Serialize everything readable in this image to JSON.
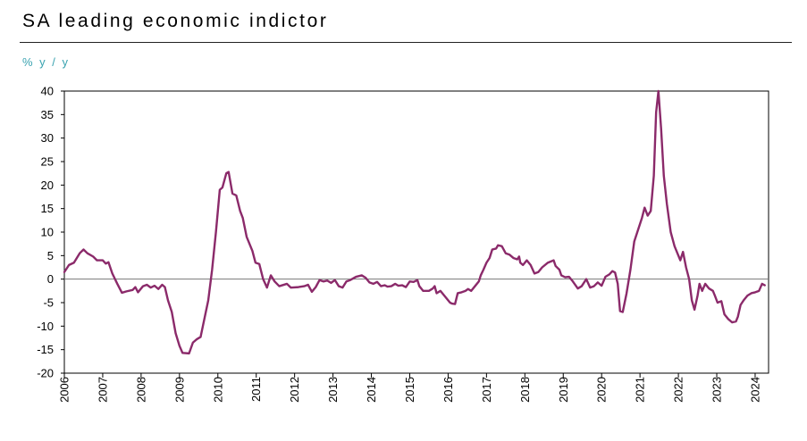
{
  "header": {
    "title": "SA leading economic indictor"
  },
  "chart_data": {
    "type": "line",
    "title": "SA leading economic indictor",
    "ylabel": "% y / y",
    "xlabel": "",
    "ylim": [
      -20,
      40
    ],
    "xlim": [
      2006,
      2024.35
    ],
    "y_ticks": [
      40,
      35,
      30,
      25,
      20,
      15,
      10,
      5,
      0,
      -5,
      -10,
      -15,
      -20
    ],
    "x_ticks": [
      "2006",
      "2007",
      "2008",
      "2009",
      "2010",
      "2011",
      "2012",
      "2013",
      "2014",
      "2015",
      "2016",
      "2017",
      "2018",
      "2019",
      "2020",
      "2021",
      "2022",
      "2023",
      "2024"
    ],
    "grid": false,
    "zero_line": true,
    "series": [
      {
        "color": "#8b2a6a",
        "points": [
          [
            2006.0,
            1.5
          ],
          [
            2006.12,
            3.0
          ],
          [
            2006.25,
            3.5
          ],
          [
            2006.4,
            5.5
          ],
          [
            2006.5,
            6.3
          ],
          [
            2006.6,
            5.5
          ],
          [
            2006.75,
            4.8
          ],
          [
            2006.85,
            4.0
          ],
          [
            2007.0,
            4.0
          ],
          [
            2007.08,
            3.3
          ],
          [
            2007.15,
            3.6
          ],
          [
            2007.25,
            1.2
          ],
          [
            2007.38,
            -1.0
          ],
          [
            2007.5,
            -2.9
          ],
          [
            2007.62,
            -2.6
          ],
          [
            2007.78,
            -2.3
          ],
          [
            2007.85,
            -1.7
          ],
          [
            2007.92,
            -2.8
          ],
          [
            2008.05,
            -1.5
          ],
          [
            2008.15,
            -1.2
          ],
          [
            2008.25,
            -1.8
          ],
          [
            2008.35,
            -1.4
          ],
          [
            2008.45,
            -2.1
          ],
          [
            2008.55,
            -1.2
          ],
          [
            2008.62,
            -1.7
          ],
          [
            2008.7,
            -4.5
          ],
          [
            2008.8,
            -7.0
          ],
          [
            2008.9,
            -11.5
          ],
          [
            2009.0,
            -14.2
          ],
          [
            2009.08,
            -15.7
          ],
          [
            2009.25,
            -15.8
          ],
          [
            2009.35,
            -13.5
          ],
          [
            2009.45,
            -12.8
          ],
          [
            2009.55,
            -12.3
          ],
          [
            2009.75,
            -4.5
          ],
          [
            2009.85,
            2.0
          ],
          [
            2009.95,
            10.0
          ],
          [
            2010.05,
            19.0
          ],
          [
            2010.12,
            19.5
          ],
          [
            2010.22,
            22.5
          ],
          [
            2010.28,
            22.8
          ],
          [
            2010.38,
            18.2
          ],
          [
            2010.48,
            17.8
          ],
          [
            2010.58,
            14.5
          ],
          [
            2010.65,
            13.0
          ],
          [
            2010.75,
            9.0
          ],
          [
            2010.9,
            6.0
          ],
          [
            2010.98,
            3.5
          ],
          [
            2011.08,
            3.2
          ],
          [
            2011.18,
            0.0
          ],
          [
            2011.28,
            -1.8
          ],
          [
            2011.38,
            0.8
          ],
          [
            2011.48,
            -0.5
          ],
          [
            2011.6,
            -1.5
          ],
          [
            2011.8,
            -1.0
          ],
          [
            2011.9,
            -1.8
          ],
          [
            2012.1,
            -1.7
          ],
          [
            2012.25,
            -1.5
          ],
          [
            2012.35,
            -1.2
          ],
          [
            2012.45,
            -2.7
          ],
          [
            2012.55,
            -1.7
          ],
          [
            2012.65,
            -0.2
          ],
          [
            2012.75,
            -0.5
          ],
          [
            2012.85,
            -0.3
          ],
          [
            2012.95,
            -0.8
          ],
          [
            2013.05,
            -0.2
          ],
          [
            2013.15,
            -1.5
          ],
          [
            2013.25,
            -1.8
          ],
          [
            2013.35,
            -0.5
          ],
          [
            2013.45,
            -0.2
          ],
          [
            2013.6,
            0.5
          ],
          [
            2013.75,
            0.8
          ],
          [
            2013.85,
            0.3
          ],
          [
            2013.95,
            -0.7
          ],
          [
            2014.05,
            -1.0
          ],
          [
            2014.15,
            -0.6
          ],
          [
            2014.25,
            -1.5
          ],
          [
            2014.35,
            -1.3
          ],
          [
            2014.42,
            -1.6
          ],
          [
            2014.52,
            -1.5
          ],
          [
            2014.62,
            -1.0
          ],
          [
            2014.7,
            -1.4
          ],
          [
            2014.8,
            -1.3
          ],
          [
            2014.9,
            -1.7
          ],
          [
            2015.0,
            -0.5
          ],
          [
            2015.1,
            -0.6
          ],
          [
            2015.2,
            -0.2
          ],
          [
            2015.25,
            -1.5
          ],
          [
            2015.35,
            -2.5
          ],
          [
            2015.5,
            -2.5
          ],
          [
            2015.6,
            -2.0
          ],
          [
            2015.65,
            -1.5
          ],
          [
            2015.7,
            -3.0
          ],
          [
            2015.8,
            -2.5
          ],
          [
            2015.9,
            -3.5
          ],
          [
            2016.05,
            -5.0
          ],
          [
            2016.1,
            -5.2
          ],
          [
            2016.18,
            -5.3
          ],
          [
            2016.25,
            -3.0
          ],
          [
            2016.35,
            -2.8
          ],
          [
            2016.45,
            -2.5
          ],
          [
            2016.52,
            -2.1
          ],
          [
            2016.6,
            -2.5
          ],
          [
            2016.7,
            -1.5
          ],
          [
            2016.8,
            -0.5
          ],
          [
            2016.85,
            0.8
          ],
          [
            2016.92,
            2.0
          ],
          [
            2017.0,
            3.5
          ],
          [
            2017.08,
            4.5
          ],
          [
            2017.15,
            6.3
          ],
          [
            2017.25,
            6.5
          ],
          [
            2017.3,
            7.2
          ],
          [
            2017.4,
            7.0
          ],
          [
            2017.5,
            5.5
          ],
          [
            2017.6,
            5.2
          ],
          [
            2017.7,
            4.5
          ],
          [
            2017.8,
            4.2
          ],
          [
            2017.85,
            4.8
          ],
          [
            2017.88,
            3.5
          ],
          [
            2017.95,
            3.0
          ],
          [
            2018.05,
            4.0
          ],
          [
            2018.15,
            3.0
          ],
          [
            2018.25,
            1.2
          ],
          [
            2018.35,
            1.5
          ],
          [
            2018.45,
            2.5
          ],
          [
            2018.6,
            3.5
          ],
          [
            2018.75,
            4.0
          ],
          [
            2018.8,
            2.8
          ],
          [
            2018.9,
            2.0
          ],
          [
            2018.95,
            0.8
          ],
          [
            2019.05,
            0.4
          ],
          [
            2019.15,
            0.5
          ],
          [
            2019.25,
            -0.5
          ],
          [
            2019.38,
            -2.0
          ],
          [
            2019.48,
            -1.5
          ],
          [
            2019.6,
            0.0
          ],
          [
            2019.7,
            -1.8
          ],
          [
            2019.8,
            -1.5
          ],
          [
            2019.9,
            -0.7
          ],
          [
            2020.0,
            -1.4
          ],
          [
            2020.1,
            0.5
          ],
          [
            2020.2,
            1.0
          ],
          [
            2020.28,
            1.7
          ],
          [
            2020.35,
            1.4
          ],
          [
            2020.42,
            -1.0
          ],
          [
            2020.48,
            -6.8
          ],
          [
            2020.55,
            -7.0
          ],
          [
            2020.65,
            -3.0
          ],
          [
            2020.75,
            2.0
          ],
          [
            2020.85,
            8.0
          ],
          [
            2020.95,
            10.5
          ],
          [
            2021.05,
            13.0
          ],
          [
            2021.12,
            15.2
          ],
          [
            2021.2,
            13.5
          ],
          [
            2021.28,
            14.5
          ],
          [
            2021.36,
            22.0
          ],
          [
            2021.42,
            35.5
          ],
          [
            2021.48,
            40.0
          ],
          [
            2021.55,
            32.0
          ],
          [
            2021.62,
            22.0
          ],
          [
            2021.7,
            16.0
          ],
          [
            2021.8,
            10.0
          ],
          [
            2021.9,
            7.0
          ],
          [
            2022.0,
            5.0
          ],
          [
            2022.05,
            4.0
          ],
          [
            2022.12,
            5.8
          ],
          [
            2022.2,
            2.5
          ],
          [
            2022.28,
            0.0
          ],
          [
            2022.35,
            -4.5
          ],
          [
            2022.42,
            -6.5
          ],
          [
            2022.5,
            -3.5
          ],
          [
            2022.55,
            -1.0
          ],
          [
            2022.62,
            -2.5
          ],
          [
            2022.7,
            -1.0
          ],
          [
            2022.8,
            -2.0
          ],
          [
            2022.9,
            -2.5
          ],
          [
            2022.95,
            -3.5
          ],
          [
            2023.02,
            -5.0
          ],
          [
            2023.12,
            -4.7
          ],
          [
            2023.2,
            -7.5
          ],
          [
            2023.3,
            -8.5
          ],
          [
            2023.4,
            -9.2
          ],
          [
            2023.5,
            -9.0
          ],
          [
            2023.55,
            -8.0
          ],
          [
            2023.62,
            -5.5
          ],
          [
            2023.7,
            -4.5
          ],
          [
            2023.8,
            -3.5
          ],
          [
            2023.9,
            -3.0
          ],
          [
            2024.0,
            -2.8
          ],
          [
            2024.1,
            -2.5
          ],
          [
            2024.18,
            -1.0
          ],
          [
            2024.25,
            -1.3
          ]
        ]
      }
    ]
  }
}
